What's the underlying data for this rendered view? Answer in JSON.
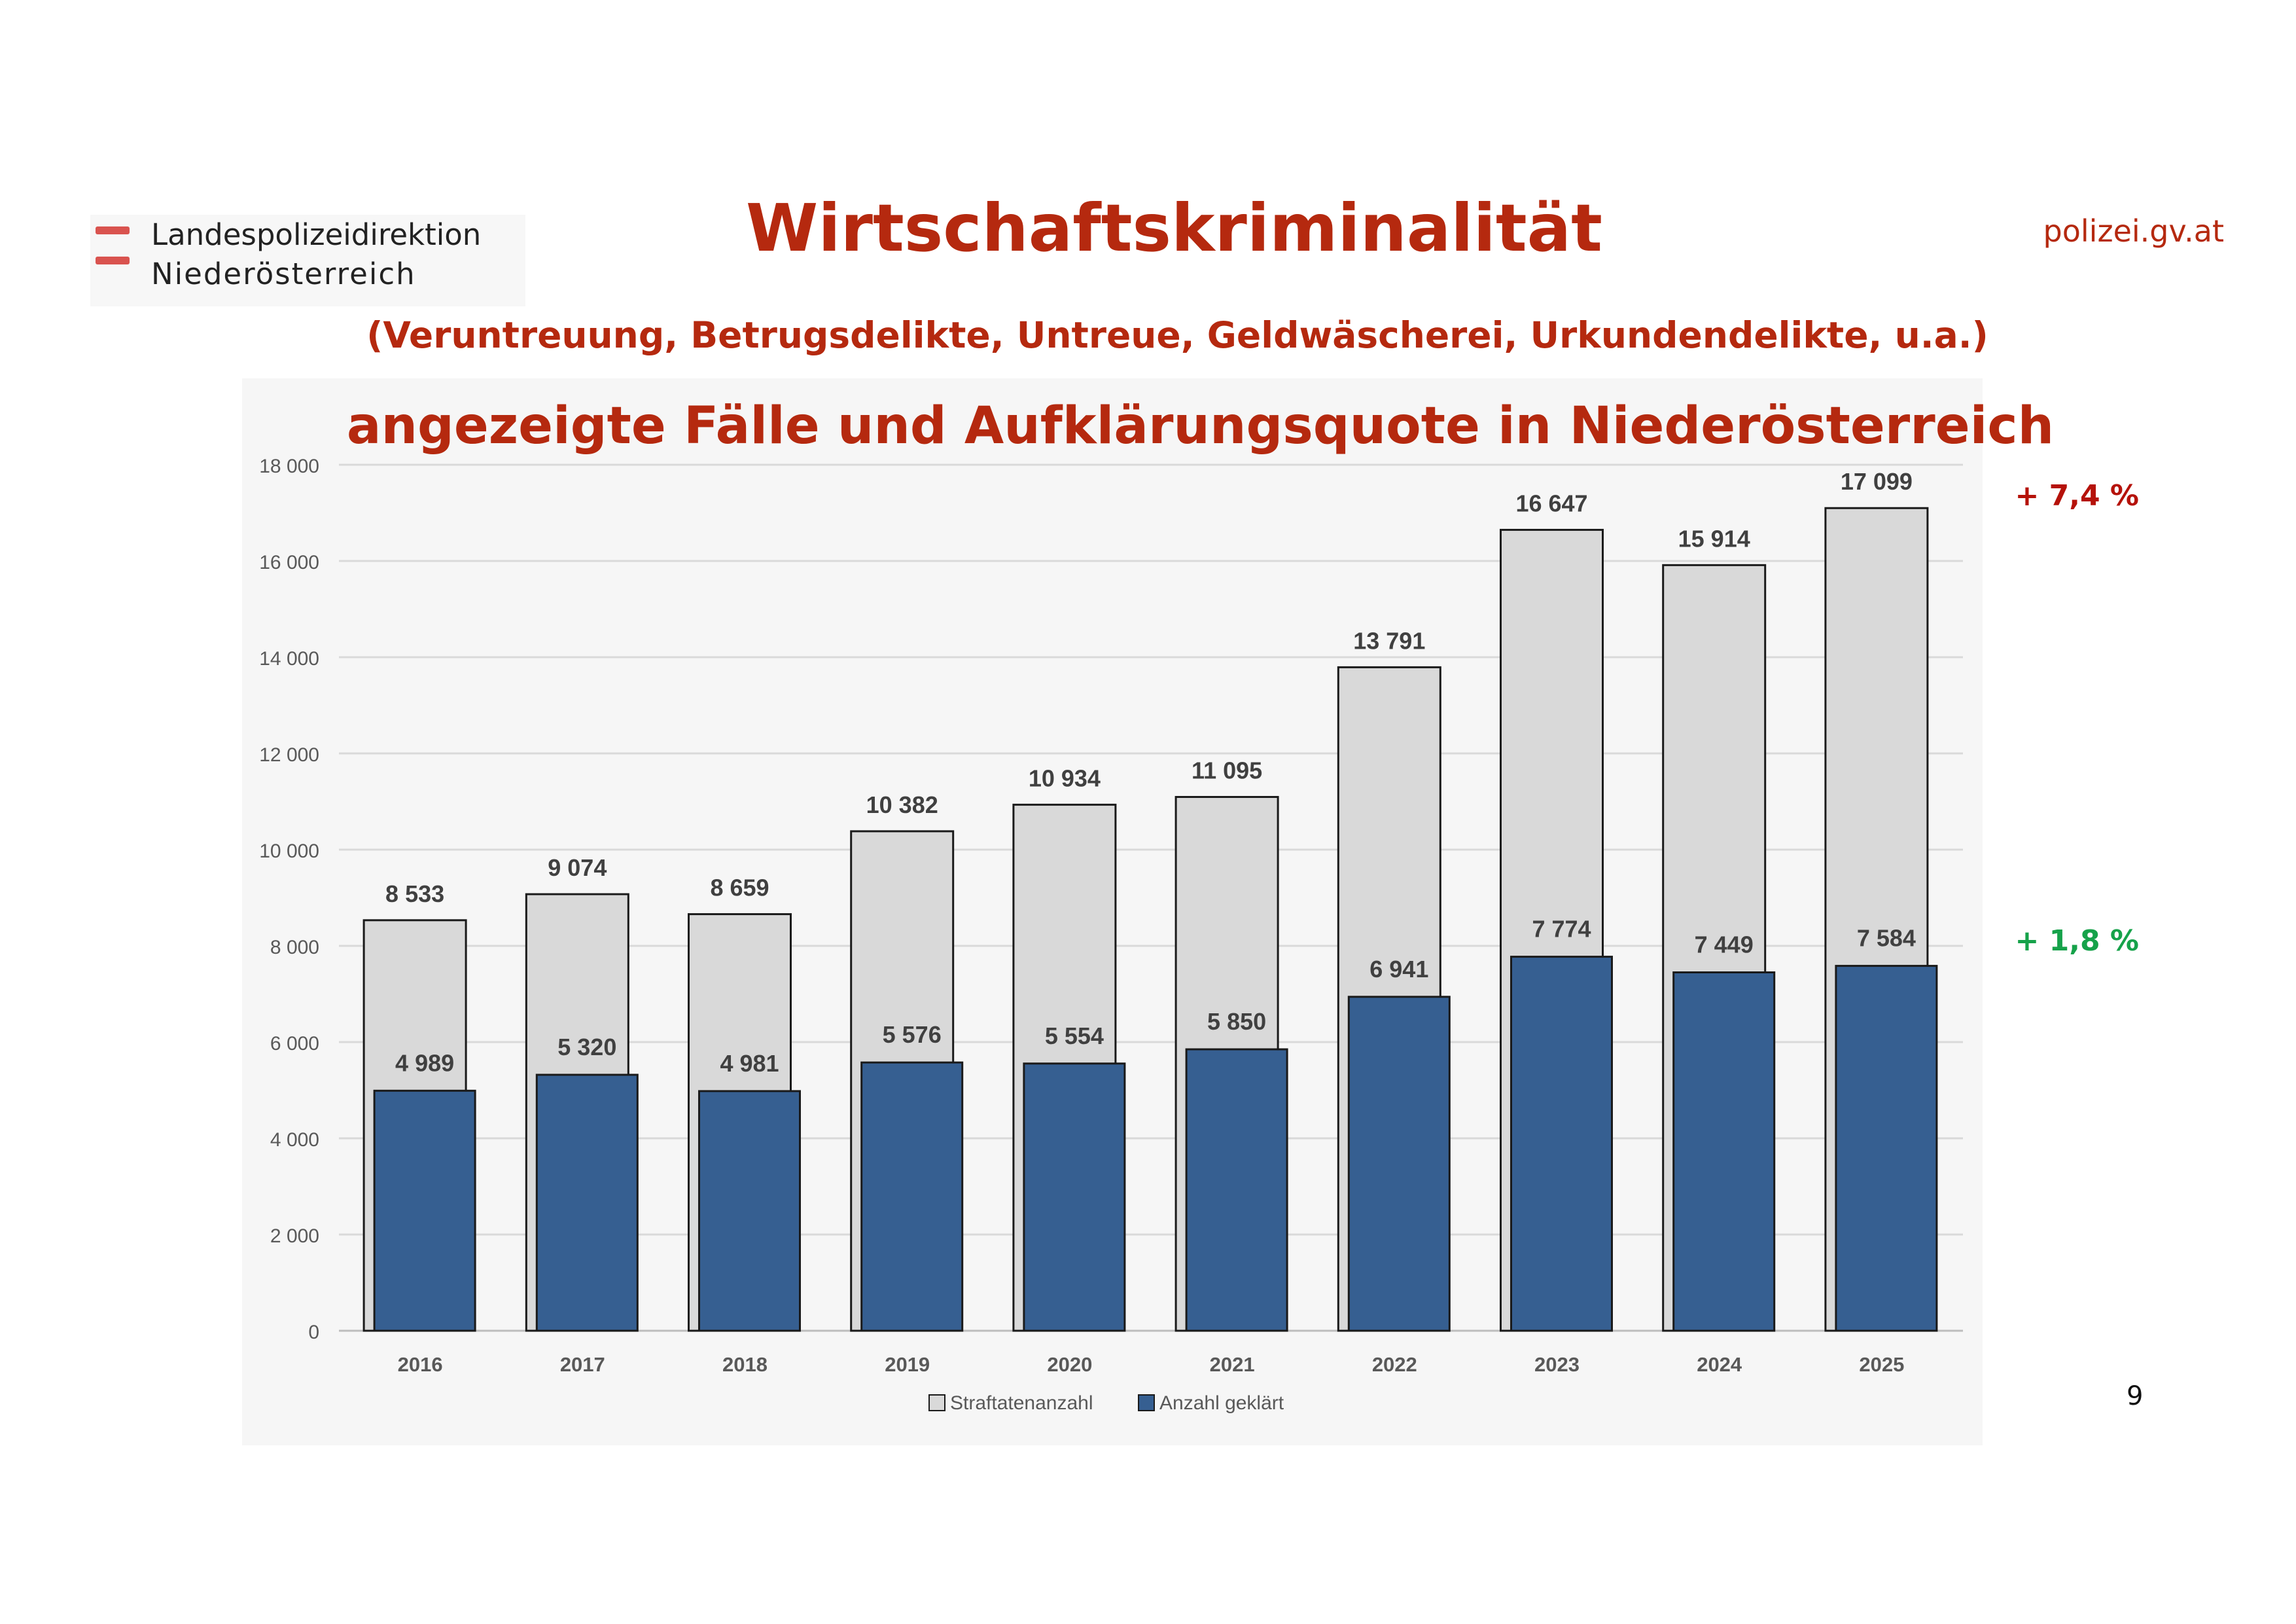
{
  "header": {
    "logo": {
      "line1": "Landespolizeidirektion",
      "line2": "Niederösterreich",
      "flag_colors": [
        "#d9534f",
        "#ffffff",
        "#d9534f"
      ]
    },
    "title": "Wirtschaftskriminalität",
    "site": "polizei.gv.at",
    "subtitle": "(Veruntreuung, Betrugsdelikte, Untreue, Geldwäscherei, Urkundendelikte, u.a.)"
  },
  "chart_title": "angezeigte Fälle und Aufklärungsquote in Niederösterreich",
  "chart_data": {
    "type": "bar",
    "categories": [
      "2016",
      "2017",
      "2018",
      "2019",
      "2020",
      "2021",
      "2022",
      "2023",
      "2024",
      "2025"
    ],
    "series": [
      {
        "name": "Straftatenanzahl",
        "values": [
          8533,
          9074,
          8659,
          10382,
          10934,
          11095,
          13791,
          16647,
          15914,
          17099
        ],
        "labels": [
          "8 533",
          "9 074",
          "8 659",
          "10 382",
          "10 934",
          "11 095",
          "13 791",
          "16 647",
          "15 914",
          "17 099"
        ],
        "color": "#d9d9d9"
      },
      {
        "name": "Anzahl geklärt",
        "values": [
          4989,
          5320,
          4981,
          5576,
          5554,
          5850,
          6941,
          7774,
          7449,
          7584
        ],
        "labels": [
          "4 989",
          "5 320",
          "4 981",
          "5 576",
          "5 554",
          "5 850",
          "6 941",
          "7 774",
          "7 449",
          "7 584"
        ],
        "color": "#365f91"
      }
    ],
    "yticks": [
      0,
      2000,
      4000,
      6000,
      8000,
      10000,
      12000,
      14000,
      16000,
      18000
    ],
    "ytick_labels": [
      "0",
      "2 000",
      "4 000",
      "6 000",
      "8 000",
      "10 000",
      "12 000",
      "14 000",
      "16 000",
      "18 000"
    ],
    "ylim": [
      0,
      18000
    ],
    "grid": true,
    "legend": "bottom",
    "xlabel": "",
    "ylabel": ""
  },
  "annotations": {
    "total_change": "+ 7,4 %",
    "cleared_change": "+ 1,8 %"
  },
  "page_number": "9"
}
